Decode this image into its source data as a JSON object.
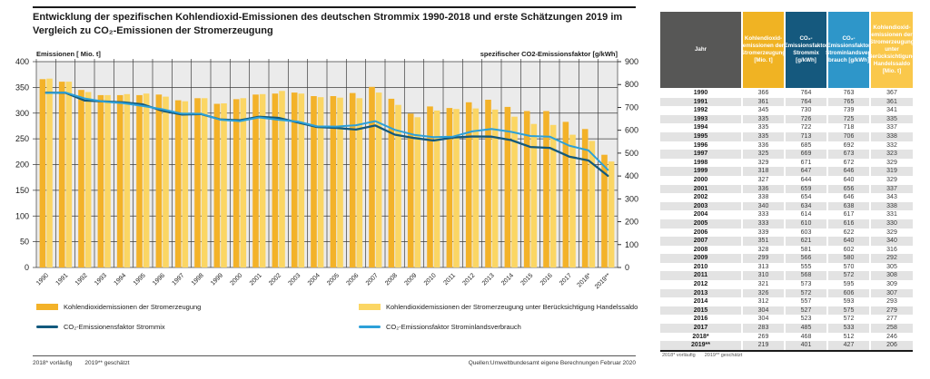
{
  "title": "Entwicklung der spezifischen Kohlendioxid-Emissionen des deutschen Strommix 1990-2018 und erste Schätzungen 2019 im\nVergleich zu CO₂-Emissionen der Stromerzeugung",
  "colors": {
    "plot_bg": "#ebebeb",
    "grid": "#3c3c3c",
    "bar_dark_yellow": "#f3b229",
    "bar_light_yellow": "#fbd664",
    "line_dark_blue": "#12597d",
    "line_light_blue": "#2ca0d8",
    "table_header_gray": "#575756",
    "table_header_yellow": "#f0b323",
    "table_header_dark_blue": "#15597e",
    "table_header_mid_blue": "#2e96c9",
    "table_header_light_yellow": "#fac84b"
  },
  "chart_data": {
    "type": "bar",
    "subtype": "grouped bars + two lines, dual axis",
    "categories": [
      "1990",
      "1991",
      "1992",
      "1993",
      "1994",
      "1995",
      "1996",
      "1997",
      "1998",
      "1999",
      "2000",
      "2001",
      "2002",
      "2003",
      "2004",
      "2005",
      "2006",
      "2007",
      "2008",
      "2009",
      "2010",
      "2011",
      "2012",
      "2013",
      "2014",
      "2015",
      "2016",
      "2017",
      "2018*",
      "2019**"
    ],
    "series": [
      {
        "name": "Kohlendioxidemissionen der Stromerzeugung",
        "type": "bar",
        "axis": "left",
        "color": "#f3b229",
        "values": [
          366,
          361,
          345,
          335,
          335,
          335,
          336,
          325,
          329,
          318,
          327,
          336,
          338,
          340,
          333,
          333,
          339,
          351,
          328,
          299,
          313,
          310,
          321,
          326,
          312,
          304,
          304,
          283,
          269,
          219
        ]
      },
      {
        "name": "Kohlendioxidemissionen der Stromerzeugung unter Berücksichtigung Handelssaldo",
        "type": "bar",
        "axis": "left",
        "color": "#fbd664",
        "values": [
          367,
          361,
          341,
          335,
          337,
          338,
          332,
          323,
          329,
          319,
          329,
          337,
          343,
          338,
          331,
          330,
          329,
          340,
          316,
          292,
          305,
          308,
          309,
          307,
          293,
          279,
          277,
          258,
          246,
          206
        ]
      },
      {
        "name": "CO₂-Emissionensfaktor Strommix",
        "type": "line",
        "axis": "right",
        "color": "#12597d",
        "values": [
          764,
          764,
          730,
          726,
          722,
          713,
          685,
          669,
          671,
          647,
          644,
          659,
          654,
          634,
          614,
          610,
          603,
          621,
          581,
          566,
          555,
          568,
          573,
          572,
          557,
          527,
          523,
          485,
          468,
          401
        ]
      },
      {
        "name": "CO₂-Emissionsfaktor Strominlandsverbrauch",
        "type": "line",
        "axis": "right",
        "color": "#2ca0d8",
        "values": [
          763,
          765,
          739,
          725,
          718,
          706,
          692,
          673,
          672,
          646,
          640,
          656,
          646,
          638,
          617,
          616,
          622,
          640,
          602,
          580,
          570,
          572,
          595,
          606,
          593,
          575,
          572,
          533,
          512,
          427
        ]
      }
    ],
    "left_axis": {
      "label": "Emissionen [ Mio. t]",
      "min": 0,
      "max": 400,
      "step": 50
    },
    "right_axis": {
      "label": "spezifischer CO2-Emissionsfaktor [g/kWh]",
      "min": 0,
      "max": 900,
      "step": 100
    },
    "grid": true,
    "legend_position": "bottom"
  },
  "table": {
    "columns": [
      {
        "label": "Jahr",
        "bg": "#575756",
        "fg": "#ffffff"
      },
      {
        "label": "Kohlendioxid-\nemissionen der\nStromerzeugung\n[Mio. t]",
        "bg": "#f0b323",
        "fg": "#ffffff"
      },
      {
        "label": "CO₂-\nEmissionsfaktor\nStrommix\n[g/kWh]",
        "bg": "#15597e",
        "fg": "#ffffff"
      },
      {
        "label": "CO₂-\nEmissionsfaktor\nStrominlandsver-\nbrauch [g/kWh]",
        "bg": "#2e96c9",
        "fg": "#ffffff"
      },
      {
        "label": "Kohlendioxid-\nemissionen der\nStromerzeugung\nunter\nBerücksichtigung\nHandelssaldo\n[Mio. t]",
        "bg": "#fac84b",
        "fg": "#ffffff"
      }
    ]
  },
  "footnotes": {
    "f1": "2018* vorläufig",
    "f2": "2019** geschätzt",
    "source": "Quellen:Umweltbundesamt  eigene Berechnungen Februar 2020"
  }
}
